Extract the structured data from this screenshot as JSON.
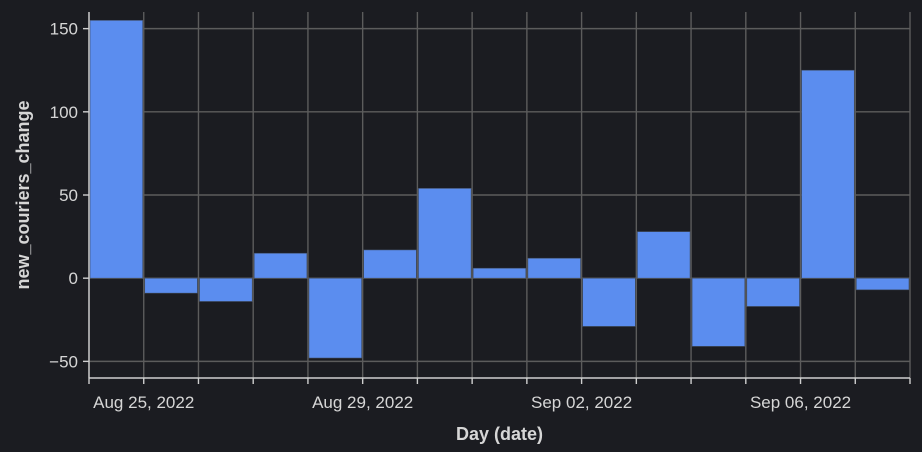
{
  "chart_data": {
    "type": "bar",
    "xlabel": "Day (date)",
    "ylabel": "new_couriers_change",
    "x": [
      "2022-08-24",
      "2022-08-25",
      "2022-08-26",
      "2022-08-27",
      "2022-08-28",
      "2022-08-29",
      "2022-08-30",
      "2022-08-31",
      "2022-09-01",
      "2022-09-02",
      "2022-09-03",
      "2022-09-04",
      "2022-09-05",
      "2022-09-06",
      "2022-09-07"
    ],
    "values": [
      155,
      -9,
      -14,
      15,
      -48,
      17,
      54,
      6,
      12,
      -29,
      28,
      -41,
      -17,
      125,
      -7
    ],
    "ylim": [
      -60,
      160
    ],
    "yticks": [
      -50,
      0,
      50,
      100,
      150
    ],
    "ytick_labels": [
      "−50",
      "0",
      "50",
      "100",
      "150"
    ],
    "xtick_labels": [
      "Aug 25, 2022",
      "Aug 29, 2022",
      "Sep 02, 2022",
      "Sep 06, 2022"
    ],
    "bar_color": "#5b8def",
    "background": "#1b1c21",
    "grid": true
  }
}
